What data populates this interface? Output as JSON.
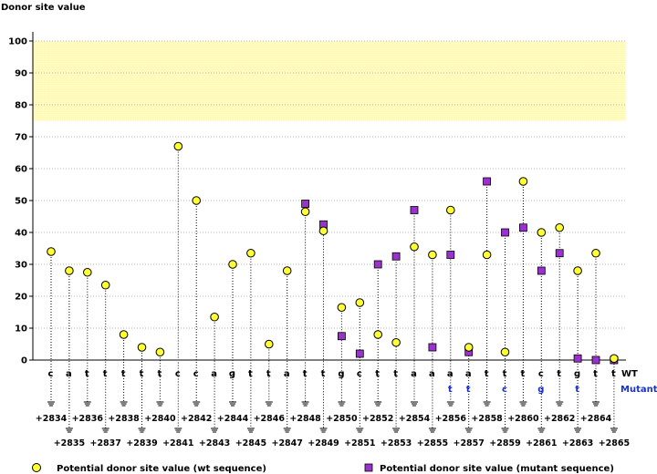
{
  "chart_data": {
    "type": "scatter",
    "ylabel": "Donor site value",
    "ylim": [
      0,
      100
    ],
    "yticks": [
      0,
      10,
      20,
      30,
      40,
      50,
      60,
      70,
      80,
      90,
      100
    ],
    "highlight_band": [
      75,
      100
    ],
    "row_labels": {
      "wt": "WT",
      "mutant": "Mutant"
    },
    "positions": [
      "+2834",
      "+2835",
      "+2836",
      "+2837",
      "+2838",
      "+2839",
      "+2840",
      "+2841",
      "+2842",
      "+2843",
      "+2844",
      "+2845",
      "+2846",
      "+2847",
      "+2848",
      "+2849",
      "+2850",
      "+2851",
      "+2852",
      "+2853",
      "+2854",
      "+2855",
      "+2856",
      "+2857",
      "+2858",
      "+2859",
      "+2860",
      "+2861",
      "+2862",
      "+2863",
      "+2864",
      "+2865"
    ],
    "wt_bases": [
      "c",
      "a",
      "t",
      "t",
      "t",
      "t",
      "t",
      "c",
      "c",
      "a",
      "g",
      "t",
      "t",
      "a",
      "t",
      "t",
      "g",
      "c",
      "t",
      "t",
      "a",
      "a",
      "a",
      "a",
      "t",
      "t",
      "t",
      "c",
      "t",
      "g",
      "t",
      "t"
    ],
    "mut_bases": [
      "",
      "",
      "",
      "",
      "",
      "",
      "",
      "",
      "",
      "",
      "",
      "",
      "",
      "",
      "",
      "",
      "",
      "",
      "",
      "",
      "",
      "",
      "t",
      "t",
      "",
      "c",
      "",
      "g",
      "",
      "t",
      "",
      ""
    ],
    "series": [
      {
        "name": "Potential donor site value (wt sequence)",
        "marker": "circle",
        "color": "#ffff33",
        "values": [
          34,
          28,
          27.5,
          23.5,
          8,
          4,
          2.5,
          67,
          50,
          13.5,
          30,
          33.5,
          5,
          28,
          46.5,
          40.5,
          16.5,
          18,
          8,
          5.5,
          35.5,
          33,
          47,
          4,
          33,
          2.5,
          56,
          40,
          41.5,
          28,
          33.5,
          0.5
        ]
      },
      {
        "name": "Potential donor site value (mutant sequence)",
        "marker": "square",
        "color": "#9933cc",
        "values": [
          null,
          null,
          null,
          null,
          null,
          null,
          null,
          null,
          null,
          null,
          null,
          null,
          null,
          null,
          49,
          42.5,
          7.5,
          2,
          30,
          32.5,
          47,
          4,
          33,
          2.5,
          56,
          40,
          41.5,
          28,
          33.5,
          0.5,
          0,
          0
        ]
      }
    ],
    "legend": {
      "wt": "Potential donor site value (wt sequence)",
      "mutant": "Potential donor site value (mutant sequence)"
    },
    "colors": {
      "band": "#fffbcc",
      "wt_base": "#000000",
      "mutant_base": "#1a33cc"
    }
  }
}
